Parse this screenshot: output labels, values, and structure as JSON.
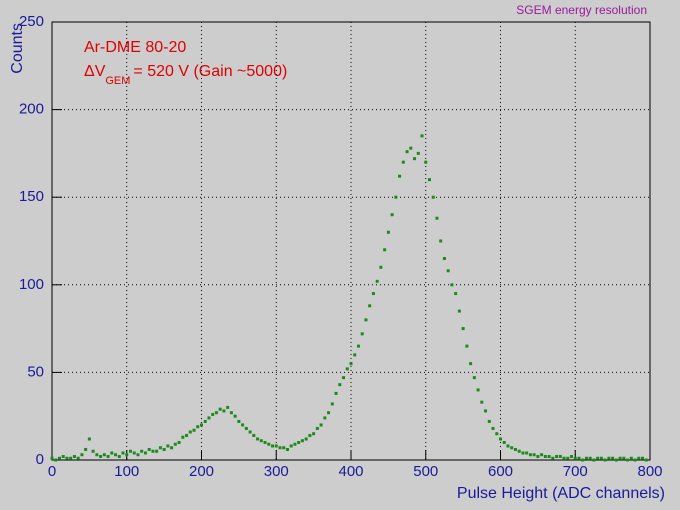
{
  "chart_data": {
    "type": "scatter",
    "title": "SGEM energy resolution",
    "annotations": [
      "Ar-DME 80-20",
      "ΔV",
      "GEM",
      "= 520 V (Gain ~5000)"
    ],
    "x_label": "Pulse Height (ADC  channels)",
    "y_label": "Counts",
    "xlim": [
      0,
      800
    ],
    "ylim": [
      0,
      250
    ],
    "xticks": [
      0,
      100,
      200,
      300,
      400,
      500,
      600,
      700,
      800
    ],
    "yticks": [
      0,
      50,
      100,
      150,
      200,
      250
    ],
    "grid": true,
    "color": "#1b8a1b",
    "x": [
      0,
      5,
      10,
      15,
      20,
      25,
      30,
      35,
      40,
      45,
      50,
      55,
      60,
      65,
      70,
      75,
      80,
      85,
      90,
      95,
      100,
      105,
      110,
      115,
      120,
      125,
      130,
      135,
      140,
      145,
      150,
      155,
      160,
      165,
      170,
      175,
      180,
      185,
      190,
      195,
      200,
      205,
      210,
      215,
      220,
      225,
      230,
      235,
      240,
      245,
      250,
      255,
      260,
      265,
      270,
      275,
      280,
      285,
      290,
      295,
      300,
      305,
      310,
      315,
      320,
      325,
      330,
      335,
      340,
      345,
      350,
      355,
      360,
      365,
      370,
      375,
      380,
      385,
      390,
      395,
      400,
      405,
      410,
      415,
      420,
      425,
      430,
      435,
      440,
      445,
      450,
      455,
      460,
      465,
      470,
      475,
      480,
      485,
      490,
      495,
      500,
      505,
      510,
      515,
      520,
      525,
      530,
      535,
      540,
      545,
      550,
      555,
      560,
      565,
      570,
      575,
      580,
      585,
      590,
      595,
      600,
      605,
      610,
      615,
      620,
      625,
      630,
      635,
      640,
      645,
      650,
      655,
      660,
      665,
      670,
      675,
      680,
      685,
      690,
      695,
      700,
      705,
      710,
      715,
      720,
      725,
      730,
      735,
      740,
      745,
      750,
      755,
      760,
      765,
      770,
      775,
      780,
      785,
      790,
      795
    ],
    "values": [
      1,
      0,
      1,
      2,
      1,
      1,
      2,
      1,
      3,
      6,
      12,
      5,
      3,
      2,
      3,
      2,
      4,
      3,
      2,
      4,
      3,
      5,
      4,
      3,
      5,
      4,
      6,
      5,
      5,
      7,
      6,
      8,
      7,
      9,
      10,
      13,
      14,
      16,
      17,
      19,
      20,
      22,
      24,
      26,
      27,
      29,
      28,
      30,
      27,
      25,
      22,
      20,
      18,
      16,
      14,
      12,
      11,
      10,
      9,
      8,
      8,
      7,
      7,
      6,
      8,
      9,
      10,
      11,
      12,
      14,
      15,
      18,
      20,
      24,
      27,
      32,
      38,
      43,
      47,
      52,
      55,
      60,
      65,
      72,
      80,
      88,
      95,
      102,
      110,
      120,
      130,
      140,
      150,
      162,
      170,
      176,
      178,
      172,
      175,
      185,
      170,
      160,
      150,
      138,
      125,
      115,
      108,
      100,
      95,
      85,
      75,
      65,
      55,
      47,
      40,
      33,
      28,
      22,
      18,
      15,
      12,
      10,
      8,
      7,
      6,
      5,
      4,
      4,
      3,
      3,
      2,
      3,
      2,
      2,
      1,
      2,
      2,
      1,
      1,
      2,
      1,
      1,
      0,
      1,
      1,
      0,
      1,
      1,
      0,
      1,
      1,
      0,
      1,
      1,
      0,
      1,
      0,
      1,
      1,
      0
    ]
  }
}
